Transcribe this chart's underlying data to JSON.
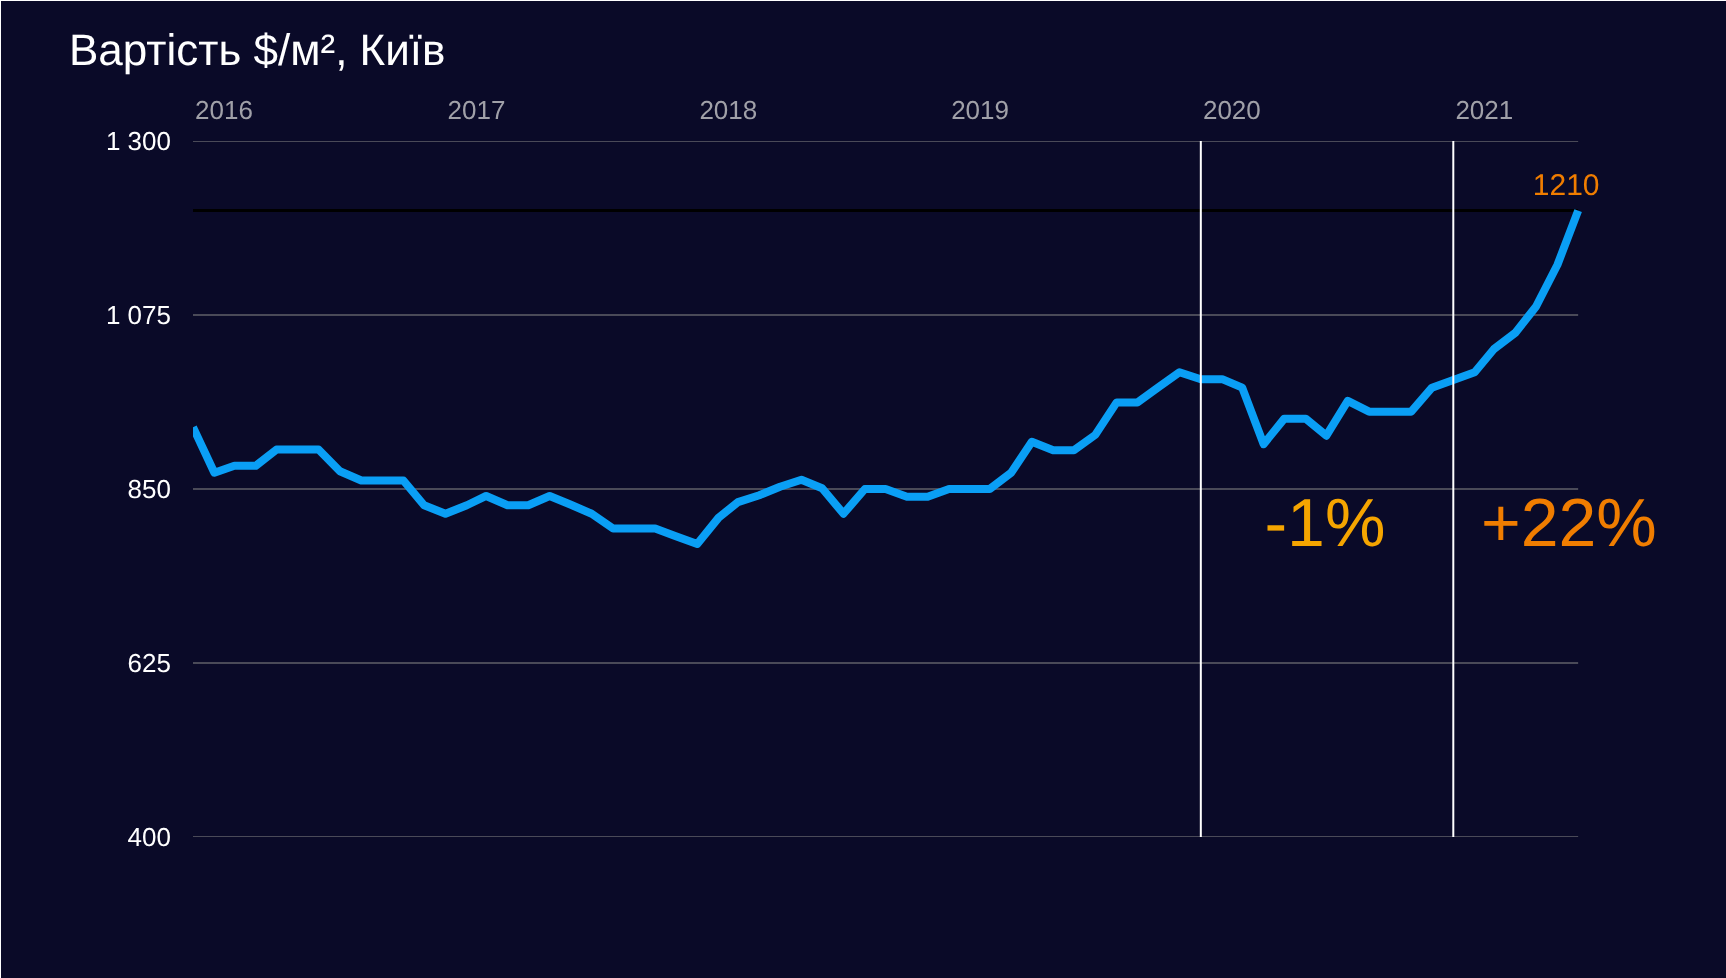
{
  "chart_data": {
    "type": "line",
    "title": "Вартість $/м², Київ",
    "x": [
      "2016-01",
      "2016-02",
      "2016-03",
      "2016-04",
      "2016-05",
      "2016-06",
      "2016-07",
      "2016-08",
      "2016-09",
      "2016-10",
      "2016-11",
      "2016-12",
      "2017-01",
      "2017-02",
      "2017-03",
      "2017-04",
      "2017-05",
      "2017-06",
      "2017-07",
      "2017-08",
      "2017-09",
      "2017-10",
      "2017-11",
      "2017-12",
      "2018-01",
      "2018-02",
      "2018-03",
      "2018-04",
      "2018-05",
      "2018-06",
      "2018-07",
      "2018-08",
      "2018-09",
      "2018-10",
      "2018-11",
      "2018-12",
      "2019-01",
      "2019-02",
      "2019-03",
      "2019-04",
      "2019-05",
      "2019-06",
      "2019-07",
      "2019-08",
      "2019-09",
      "2019-10",
      "2019-11",
      "2019-12",
      "2020-01",
      "2020-02",
      "2020-03",
      "2020-04",
      "2020-05",
      "2020-06",
      "2020-07",
      "2020-08",
      "2020-09",
      "2020-10",
      "2020-11",
      "2020-12",
      "2021-01",
      "2021-02",
      "2021-03",
      "2021-04",
      "2021-05",
      "2021-06",
      "2021-07"
    ],
    "series": [
      {
        "color": "#0a9ff5",
        "values": [
          930,
          871,
          880,
          880,
          901,
          901,
          901,
          873,
          861,
          861,
          861,
          829,
          818,
          829,
          841,
          829,
          829,
          841,
          830,
          818,
          799,
          799,
          799,
          789,
          779,
          813,
          833,
          842,
          853,
          862,
          851,
          818,
          850,
          850,
          840,
          840,
          850,
          850,
          850,
          871,
          911,
          900,
          900,
          920,
          962,
          962,
          982,
          1001,
          992,
          992,
          981,
          908,
          941,
          941,
          919,
          964,
          950,
          950,
          950,
          981,
          991,
          1001,
          1031,
          1052,
          1086,
          1140,
          1210
        ],
        "value_labels": [
          null,
          null,
          null,
          null,
          null,
          null,
          null,
          null,
          null,
          null,
          null,
          null,
          null,
          null,
          null,
          null,
          null,
          null,
          null,
          null,
          null,
          null,
          null,
          null,
          null,
          null,
          null,
          null,
          null,
          null,
          null,
          null,
          null,
          null,
          null,
          null,
          null,
          null,
          null,
          null,
          null,
          null,
          null,
          null,
          null,
          null,
          null,
          null,
          null,
          null,
          null,
          null,
          null,
          null,
          null,
          null,
          null,
          null,
          null,
          null,
          null,
          null,
          null,
          null,
          null,
          null,
          "1210"
        ]
      }
    ],
    "xlim": [
      "2016-01",
      "2021-11"
    ],
    "xticks": [
      {
        "value": "2016-02-15",
        "label": "2016"
      },
      {
        "value": "2017-02-15",
        "label": "2017"
      },
      {
        "value": "2018-02-15",
        "label": "2018"
      },
      {
        "value": "2019-02-15",
        "label": "2019"
      },
      {
        "value": "2020-02-15",
        "label": "2020"
      },
      {
        "value": "2021-02-15",
        "label": "2021"
      }
    ],
    "ylim": [
      400,
      1300
    ],
    "yticks": [
      {
        "value": 400,
        "label": "400"
      },
      {
        "value": 625,
        "label": "625"
      },
      {
        "value": 850,
        "label": "850"
      },
      {
        "value": 1075,
        "label": "1 075"
      },
      {
        "value": 1300,
        "label": "1 300"
      }
    ],
    "grid": "y",
    "marker": "none",
    "line_style": "solid",
    "ref_lines": [
      {
        "axis": "y",
        "value": 1210,
        "color": "#000000"
      },
      {
        "axis": "x",
        "value": "2020-01",
        "color": "#ffffff"
      },
      {
        "axis": "x",
        "value": "2021-01",
        "color": "#ffffff"
      }
    ],
    "annotations": [
      "-1%",
      "+22%"
    ]
  }
}
